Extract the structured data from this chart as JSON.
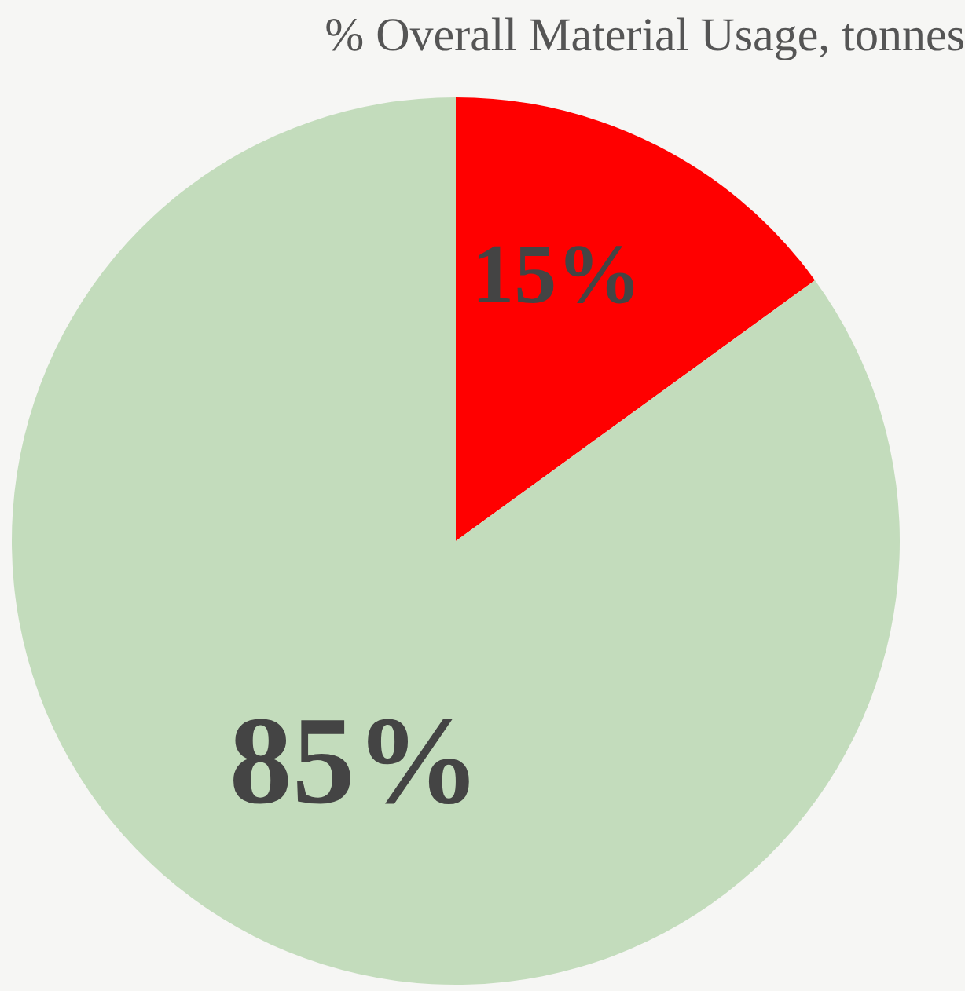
{
  "chart_data": {
    "type": "pie",
    "title": "% Overall Material Usage, tonnes",
    "categories": [
      null,
      null
    ],
    "values": [
      15,
      85
    ],
    "colors": [
      "#ff0000",
      "#c3dcbc"
    ],
    "value_labels": [
      "15%",
      "85%"
    ],
    "legend": false
  }
}
